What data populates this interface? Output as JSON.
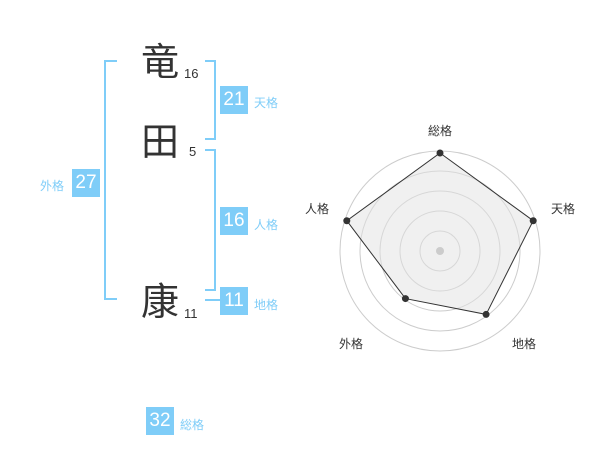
{
  "name": {
    "chars": [
      {
        "char": "竜",
        "strokes": "16"
      },
      {
        "char": "田",
        "strokes": "5"
      },
      {
        "char": "康",
        "strokes": "11"
      }
    ]
  },
  "scores": {
    "tenkaku": {
      "value": "21",
      "label": "天格"
    },
    "jinkaku": {
      "value": "16",
      "label": "人格"
    },
    "chikaku": {
      "value": "11",
      "label": "地格"
    },
    "gaikaku": {
      "value": "27",
      "label": "外格"
    },
    "soukaku": {
      "value": "32",
      "label": "総格"
    }
  },
  "accent_color": "#7fcdf8",
  "chart_data": {
    "type": "radar",
    "axes": [
      "総格",
      "天格",
      "地格",
      "外格",
      "人格"
    ],
    "values": [
      5,
      5,
      4,
      3,
      5
    ],
    "range": [
      0,
      5
    ],
    "levels": 5
  }
}
